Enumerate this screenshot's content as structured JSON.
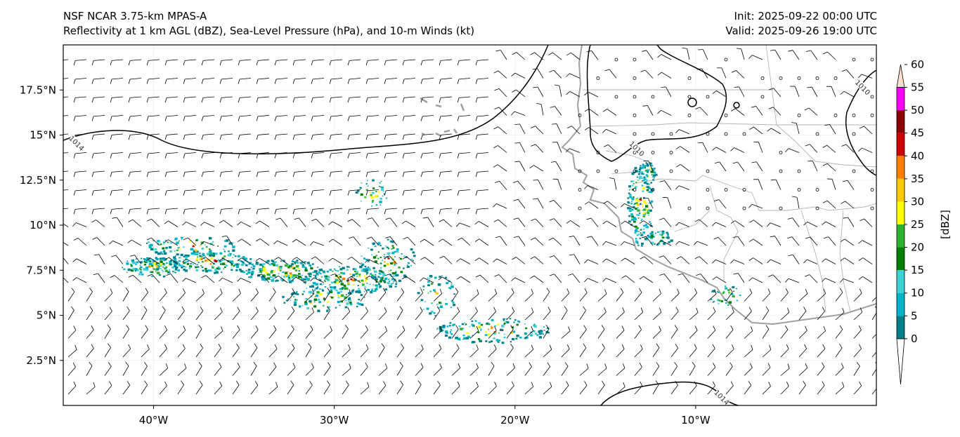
{
  "header": {
    "model": "NSF NCAR 3.75-km MPAS-A",
    "fields": "Reflectivity at 1 km AGL (dBZ), Sea-Level Pressure (hPa), and 10-m Winds (kt)",
    "init": "Init: 2025-09-22 00:00 UTC",
    "valid": "Valid: 2025-09-26 19:00 UTC"
  },
  "map": {
    "lon_range": [
      -45,
      0
    ],
    "lat_range": [
      0,
      20
    ],
    "lat_ticks": [
      {
        "value": 2.5,
        "label": "2.5°N"
      },
      {
        "value": 5,
        "label": "5°N"
      },
      {
        "value": 7.5,
        "label": "7.5°N"
      },
      {
        "value": 10,
        "label": "10°N"
      },
      {
        "value": 12.5,
        "label": "12.5°N"
      },
      {
        "value": 15,
        "label": "15°N"
      },
      {
        "value": 17.5,
        "label": "17.5°N"
      }
    ],
    "lon_ticks": [
      {
        "value": -40,
        "label": "40°W"
      },
      {
        "value": -30,
        "label": "30°W"
      },
      {
        "value": -20,
        "label": "20°W"
      },
      {
        "value": -10,
        "label": "10°W"
      }
    ],
    "isobars": [
      {
        "label": "1014",
        "label_lon": -44.3,
        "label_lat": 14.5
      },
      {
        "label": "1010",
        "label_lon": -13.3,
        "label_lat": 14.2
      },
      {
        "label": "1010",
        "label_lon": -0.8,
        "label_lat": 17.6
      },
      {
        "label": "1014",
        "label_lon": -8.6,
        "label_lat": 0.4
      }
    ],
    "colors": {
      "land_outline": "#a0a0a0",
      "isobar": "#000000",
      "barb": "#000000"
    }
  },
  "colorbar": {
    "label": "[dBZ]",
    "ticks": [
      "0",
      "5",
      "10",
      "15",
      "20",
      "25",
      "30",
      "35",
      "40",
      "45",
      "50",
      "55",
      "60"
    ],
    "colors": [
      "#ffffff",
      "#00808a",
      "#00b4c8",
      "#3ad2d2",
      "#008000",
      "#30b030",
      "#ffff00",
      "#ffcc00",
      "#ff8000",
      "#d00000",
      "#8b0000",
      "#ff00ff",
      "#ffe0d0"
    ]
  }
}
